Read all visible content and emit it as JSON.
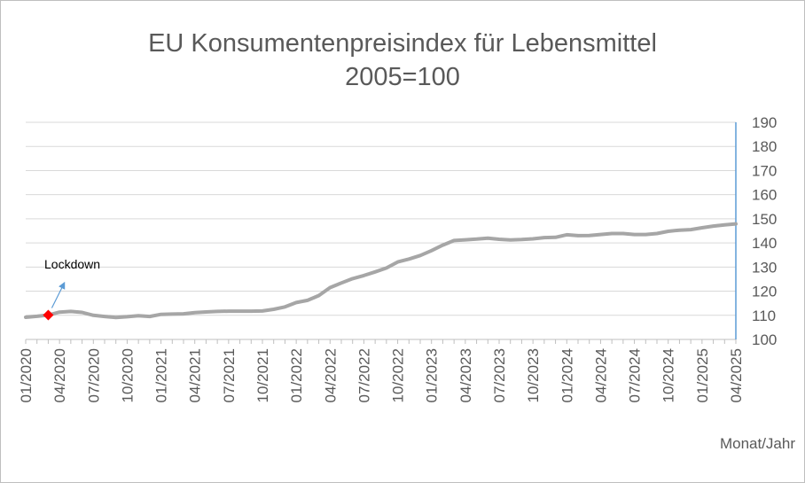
{
  "chart_data": {
    "type": "line",
    "title": [
      "EU Konsumentenpreisindex  für Lebensmittel",
      "2005=100"
    ],
    "xlabel": "Monat/Jahr",
    "ylabel": "",
    "ylim": [
      100,
      190
    ],
    "yticks": [
      100,
      110,
      120,
      130,
      140,
      150,
      160,
      170,
      180,
      190
    ],
    "y_axis_side": "right",
    "grid": true,
    "legend": "none",
    "xtick_labels": [
      "01/2020",
      "04/2020",
      "07/2020",
      "10/2020",
      "01/2021",
      "04/2021",
      "07/2021",
      "10/2021",
      "01/2022",
      "04/2022",
      "07/2022",
      "10/2022",
      "01/2023",
      "04/2023",
      "07/2023",
      "10/2023",
      "01/2024",
      "04/2024",
      "07/2024",
      "10/2024",
      "01/2025",
      "04/2025"
    ],
    "series": [
      {
        "color": "#a6a6a6",
        "x": [
          "01/2020",
          "02/2020",
          "03/2020",
          "04/2020",
          "05/2020",
          "06/2020",
          "07/2020",
          "08/2020",
          "09/2020",
          "10/2020",
          "11/2020",
          "12/2020",
          "01/2021",
          "02/2021",
          "03/2021",
          "04/2021",
          "05/2021",
          "06/2021",
          "07/2021",
          "08/2021",
          "09/2021",
          "10/2021",
          "11/2021",
          "12/2021",
          "01/2022",
          "02/2022",
          "03/2022",
          "04/2022",
          "05/2022",
          "06/2022",
          "07/2022",
          "08/2022",
          "09/2022",
          "10/2022",
          "11/2022",
          "12/2022",
          "01/2023",
          "02/2023",
          "03/2023",
          "04/2023",
          "05/2023",
          "06/2023",
          "07/2023",
          "08/2023",
          "09/2023",
          "10/2023",
          "11/2023",
          "12/2023",
          "01/2024",
          "02/2024",
          "03/2024",
          "04/2024",
          "05/2024",
          "06/2024",
          "07/2024",
          "08/2024",
          "09/2024",
          "10/2024",
          "11/2024",
          "12/2024",
          "01/2025",
          "02/2025",
          "03/2025",
          "04/2025"
        ],
        "values": [
          109.2,
          109.6,
          110.1,
          111.3,
          111.6,
          111.2,
          110.0,
          109.5,
          109.1,
          109.4,
          109.8,
          109.5,
          110.4,
          110.5,
          110.6,
          111.1,
          111.4,
          111.6,
          111.7,
          111.7,
          111.7,
          111.8,
          112.5,
          113.5,
          115.3,
          116.2,
          118.2,
          121.5,
          123.4,
          125.2,
          126.5,
          128.0,
          129.6,
          132.1,
          133.3,
          134.8,
          136.8,
          139.1,
          141.0,
          141.3,
          141.6,
          142.0,
          141.5,
          141.2,
          141.4,
          141.7,
          142.2,
          142.3,
          143.4,
          143.0,
          143.1,
          143.5,
          143.9,
          143.9,
          143.5,
          143.5,
          143.9,
          144.8,
          145.3,
          145.5,
          146.3,
          147.0,
          147.5,
          147.9
        ]
      }
    ],
    "markers": [
      {
        "x": "03/2020",
        "y": 110.1,
        "color": "#ff0000"
      }
    ],
    "annotations": [
      {
        "text": "Lockdown",
        "x": "03/2020",
        "arrow_color": "#5b9bd5"
      }
    ],
    "colors": {
      "axis": "#5b9bd5",
      "grid": "#d9d9d9",
      "text": "#595959"
    }
  }
}
